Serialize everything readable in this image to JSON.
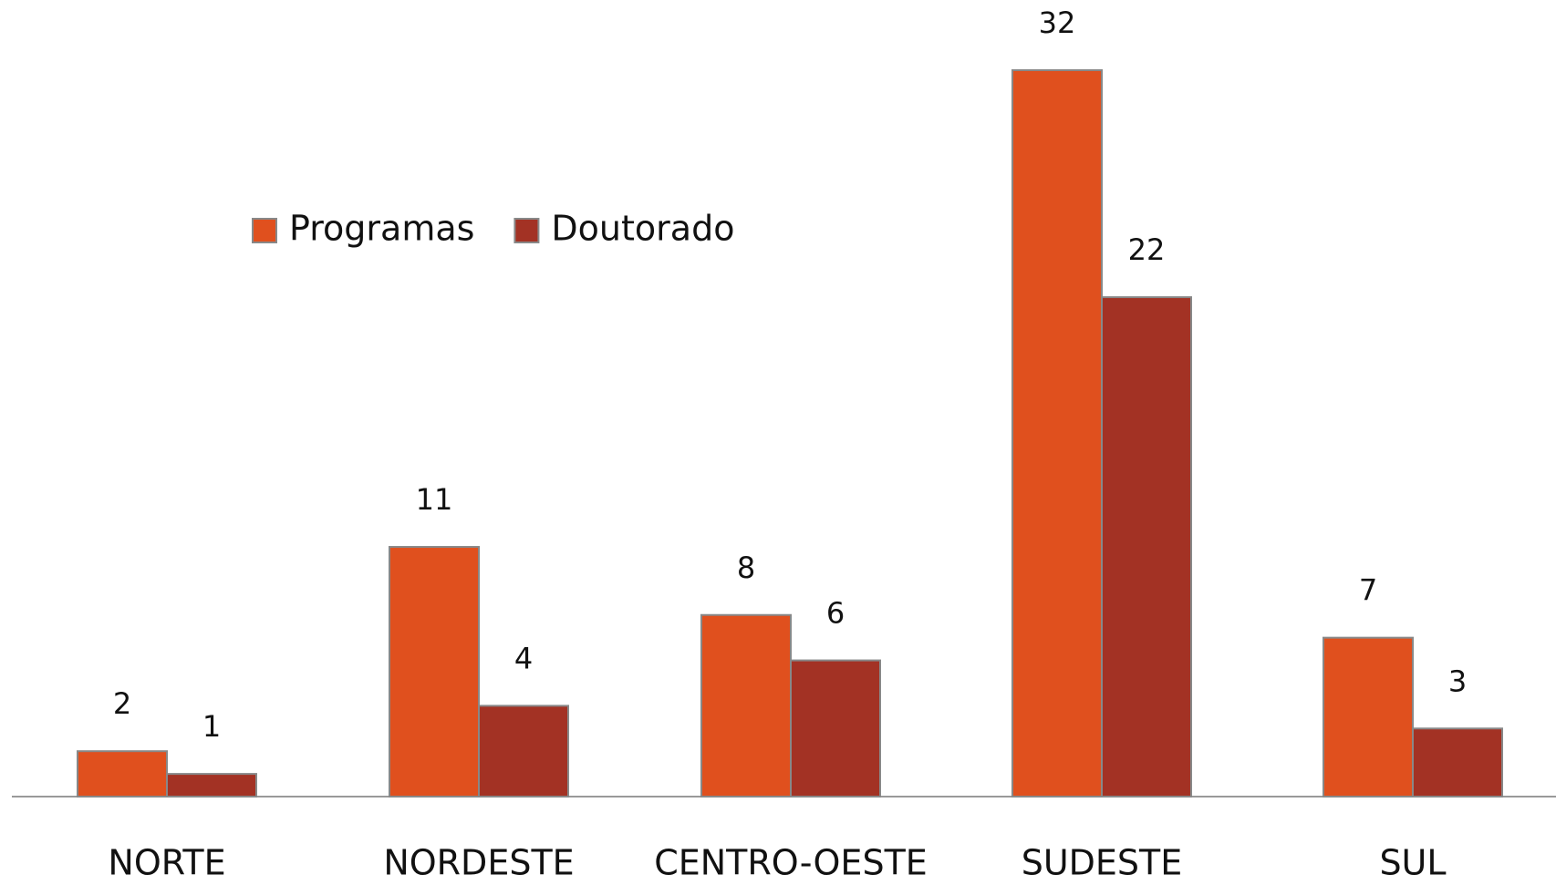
{
  "chart_data": {
    "type": "bar",
    "categories": [
      "NORTE",
      "NORDESTE",
      "CENTRO-OESTE",
      "SUDESTE",
      "SUL"
    ],
    "series": [
      {
        "name": "Programas",
        "color": "#e0501e",
        "values": [
          2,
          11,
          8,
          32,
          7
        ]
      },
      {
        "name": "Doutorado",
        "color": "#a33224",
        "values": [
          1,
          4,
          6,
          22,
          3
        ]
      }
    ],
    "legend": "top-left"
  }
}
